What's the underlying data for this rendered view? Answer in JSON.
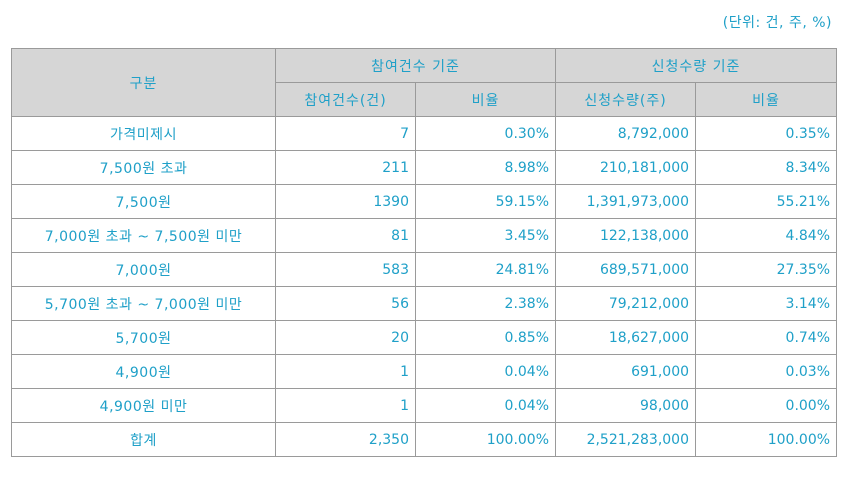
{
  "unit_note": "(단위: 건, 주, %)",
  "headers": {
    "category": "구분",
    "group1": "참여건수 기준",
    "group2": "신청수량 기준",
    "g1_count": "참여건수(건)",
    "g1_ratio": "비율",
    "g2_qty": "신청수량(주)",
    "g2_ratio": "비율"
  },
  "rows": [
    {
      "category": "가격미제시",
      "count": "7",
      "count_ratio": "0.30%",
      "qty": "8,792,000",
      "qty_ratio": "0.35%"
    },
    {
      "category": "7,500원 초과",
      "count": "211",
      "count_ratio": "8.98%",
      "qty": "210,181,000",
      "qty_ratio": "8.34%"
    },
    {
      "category": "7,500원",
      "count": "1390",
      "count_ratio": "59.15%",
      "qty": "1,391,973,000",
      "qty_ratio": "55.21%"
    },
    {
      "category": "7,000원 초과 ~ 7,500원 미만",
      "count": "81",
      "count_ratio": "3.45%",
      "qty": "122,138,000",
      "qty_ratio": "4.84%"
    },
    {
      "category": "7,000원",
      "count": "583",
      "count_ratio": "24.81%",
      "qty": "689,571,000",
      "qty_ratio": "27.35%"
    },
    {
      "category": "5,700원 초과 ~ 7,000원 미만",
      "count": "56",
      "count_ratio": "2.38%",
      "qty": "79,212,000",
      "qty_ratio": "3.14%"
    },
    {
      "category": "5,700원",
      "count": "20",
      "count_ratio": "0.85%",
      "qty": "18,627,000",
      "qty_ratio": "0.74%"
    },
    {
      "category": "4,900원",
      "count": "1",
      "count_ratio": "0.04%",
      "qty": "691,000",
      "qty_ratio": "0.03%"
    },
    {
      "category": "4,900원 미만",
      "count": "1",
      "count_ratio": "0.04%",
      "qty": "98,000",
      "qty_ratio": "0.00%"
    },
    {
      "category": "합계",
      "count": "2,350",
      "count_ratio": "100.00%",
      "qty": "2,521,283,000",
      "qty_ratio": "100.00%"
    }
  ]
}
